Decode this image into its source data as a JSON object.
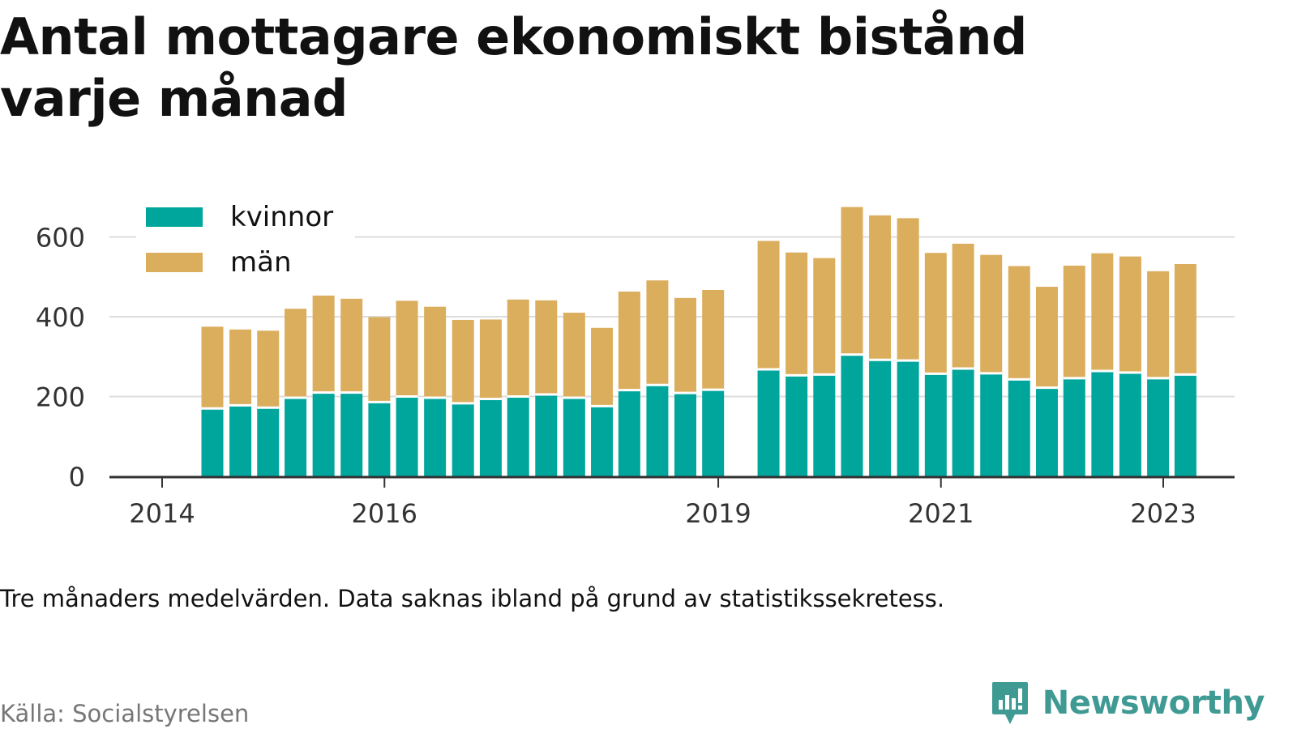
{
  "header": {
    "title": "Antal mottagare ekonomiskt bistånd varje månad"
  },
  "legend": {
    "items": [
      {
        "label": "kvinnor",
        "color": "#00a69c"
      },
      {
        "label": "män",
        "color": "#dbae5d"
      }
    ]
  },
  "footer": {
    "note": "Tre månaders medelvärden. Data saknas ibland på grund av statistikssekretess.",
    "source": "Källa: Socialstyrelsen",
    "brand": "Newsworthy",
    "brand_color": "#3e9a93",
    "brand_icon": "newsworthy-chart-bubble-icon"
  },
  "chart_data": {
    "type": "bar",
    "stacked": true,
    "title": "Antal mottagare ekonomiskt bistånd varje månad",
    "xlabel": "",
    "ylabel": "",
    "ylim": [
      0,
      700
    ],
    "yticks": [
      0,
      200,
      400,
      600
    ],
    "grid": true,
    "legend_position": "top-left",
    "x_tick_labels": [
      {
        "label": "2014",
        "date": "2014-01-01"
      },
      {
        "label": "2016",
        "date": "2016-01-01"
      },
      {
        "label": "2019",
        "date": "2019-01-01"
      },
      {
        "label": "2021",
        "date": "2021-01-01"
      },
      {
        "label": "2023",
        "date": "2023-01-01"
      }
    ],
    "categories": [
      "2014-06",
      "2014-09",
      "2014-12",
      "2015-03",
      "2015-06",
      "2015-09",
      "2015-12",
      "2016-03",
      "2016-06",
      "2016-09",
      "2016-12",
      "2017-03",
      "2017-06",
      "2017-09",
      "2017-12",
      "2018-03",
      "2018-06",
      "2018-09",
      "2018-12",
      "2019-06",
      "2019-09",
      "2019-12",
      "2020-03",
      "2020-06",
      "2020-09",
      "2020-12",
      "2021-03",
      "2021-06",
      "2021-09",
      "2021-12",
      "2022-03",
      "2022-06",
      "2022-09",
      "2022-12",
      "2023-03"
    ],
    "series": [
      {
        "name": "kvinnor",
        "color": "#00a69c",
        "values": [
          170,
          178,
          172,
          197,
          210,
          210,
          186,
          200,
          197,
          183,
          194,
          200,
          205,
          197,
          176,
          216,
          229,
          209,
          217,
          268,
          253,
          255,
          305,
          292,
          290,
          257,
          270,
          258,
          243,
          222,
          246,
          264,
          260,
          246,
          255
        ]
      },
      {
        "name": "män",
        "color": "#dbae5d",
        "values": [
          205,
          190,
          193,
          223,
          243,
          235,
          213,
          240,
          228,
          209,
          199,
          243,
          236,
          213,
          196,
          247,
          262,
          238,
          250,
          322,
          308,
          292,
          370,
          362,
          357,
          303,
          313,
          297,
          284,
          253,
          282,
          295,
          291,
          268,
          277
        ]
      }
    ]
  }
}
